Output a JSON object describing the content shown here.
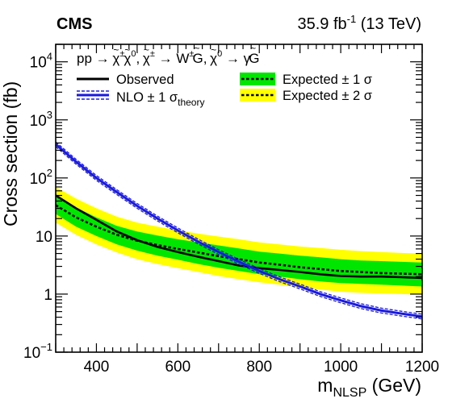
{
  "header": {
    "experiment": "CMS",
    "lumi_value": "35.9 fb",
    "lumi_exp": "-1",
    "lumi_rest": " (13 TeV)"
  },
  "chart_data": {
    "type": "line",
    "title": "",
    "xlabel_main": "m",
    "xlabel_sub": "NLSP",
    "xlabel_unit": " (GeV)",
    "ylabel": "Cross section (fb)",
    "xlim": [
      300,
      1200
    ],
    "ylim": [
      0.1,
      20000
    ],
    "ylog": true,
    "grid": false,
    "legend_position": "top",
    "x_ticks": [
      {
        "value": 400,
        "label": "400"
      },
      {
        "value": 600,
        "label": "600"
      },
      {
        "value": 800,
        "label": "800"
      },
      {
        "value": 1000,
        "label": "1000"
      },
      {
        "value": 1200,
        "label": "1200"
      }
    ],
    "y_ticks": [
      {
        "value": 0.1,
        "base": "10",
        "exp": "−1"
      },
      {
        "value": 1,
        "base": "1",
        "exp": ""
      },
      {
        "value": 10,
        "base": "10",
        "exp": ""
      },
      {
        "value": 100,
        "base": "10",
        "exp": "2"
      },
      {
        "value": 1000,
        "base": "10",
        "exp": "3"
      },
      {
        "value": 10000,
        "base": "10",
        "exp": "4"
      }
    ],
    "process": {
      "a": "pp → ",
      "b": "χ",
      "b_sup": "±",
      "c": "χ",
      "c_sup": "0",
      "d": ",   ",
      "e": "χ",
      "e_sup": "±",
      "f": " → W",
      "f_sup": "±",
      "g": "G",
      "h": ",   ",
      "i": "χ",
      "i_sup": "0",
      "j": " → γ",
      "k": "G",
      "tilde": "~"
    },
    "legend": {
      "observed": "Observed",
      "nlo_pre": "NLO ± 1 σ",
      "nlo_sub": "theory",
      "exp1": "Expected ± 1 σ",
      "exp2": "Expected ± 2 σ"
    },
    "colors": {
      "observed": "#000000",
      "theory": "#1a1ae0",
      "band1": "#00e600",
      "band2": "#ffff00"
    },
    "x": [
      300,
      350,
      400,
      450,
      500,
      550,
      600,
      650,
      700,
      750,
      800,
      850,
      900,
      950,
      1000,
      1050,
      1100,
      1150,
      1200
    ],
    "series": [
      {
        "name": "Observed",
        "values": [
          50,
          30,
          19,
          12,
          8.5,
          6.5,
          5.3,
          4.4,
          3.7,
          3.1,
          2.8,
          2.6,
          2.4,
          2.2,
          2.05,
          2.0,
          2.0,
          1.95,
          1.9
        ]
      },
      {
        "name": "Expected",
        "values": [
          34,
          21,
          14.5,
          10.5,
          8.3,
          7.0,
          6.0,
          5.2,
          4.5,
          4.0,
          3.5,
          3.2,
          2.9,
          2.7,
          2.5,
          2.4,
          2.3,
          2.25,
          2.2
        ],
        "band1_low": [
          24,
          14.5,
          10,
          7.2,
          5.6,
          4.6,
          3.9,
          3.3,
          2.85,
          2.5,
          2.2,
          2.0,
          1.8,
          1.65,
          1.55,
          1.5,
          1.45,
          1.4,
          1.35
        ],
        "band1_high": [
          50,
          31,
          21,
          15,
          12,
          10.2,
          8.8,
          7.8,
          6.9,
          6.1,
          5.4,
          5.0,
          4.6,
          4.3,
          4.0,
          3.8,
          3.7,
          3.6,
          3.5
        ],
        "band2_low": [
          17,
          10.5,
          7.2,
          5.2,
          4.0,
          3.3,
          2.8,
          2.4,
          2.05,
          1.8,
          1.6,
          1.45,
          1.3,
          1.2,
          1.1,
          1.05,
          1.02,
          1.0,
          0.98
        ],
        "band2_high": [
          70,
          44,
          30,
          21.5,
          17,
          14.5,
          12.5,
          11,
          9.8,
          8.8,
          7.8,
          7.2,
          6.6,
          6.2,
          5.8,
          5.5,
          5.3,
          5.1,
          5.0
        ]
      },
      {
        "name": "NLO",
        "values": [
          380,
          190,
          100,
          57,
          33,
          20,
          12.5,
          8.0,
          5.3,
          3.6,
          2.5,
          1.8,
          1.35,
          1.0,
          0.78,
          0.62,
          0.52,
          0.46,
          0.41
        ]
      }
    ]
  }
}
